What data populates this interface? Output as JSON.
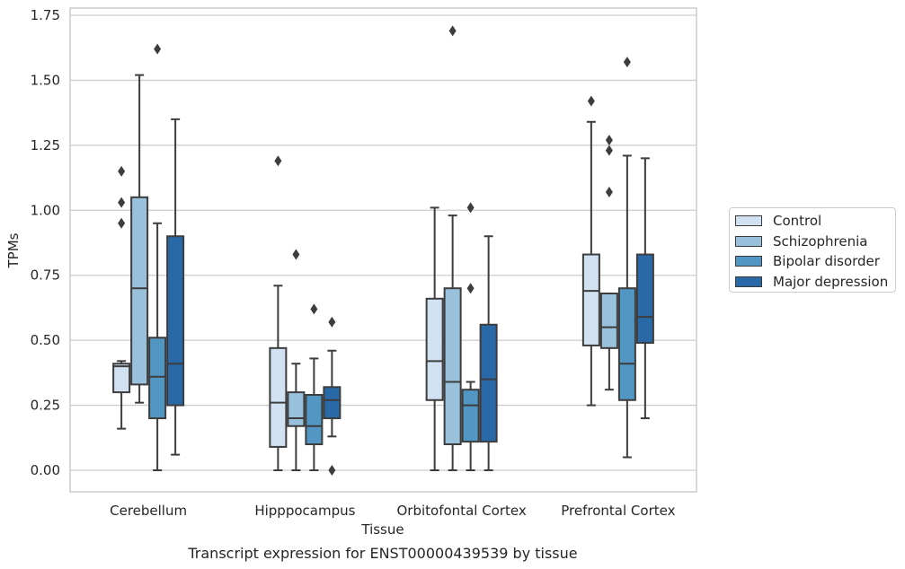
{
  "chart_data": {
    "type": "box",
    "title": "",
    "caption": "Transcript expression for ENST00000439539 by tissue",
    "xlabel": "Tissue",
    "ylabel": "TPMs",
    "ylim": [
      -0.08,
      1.76
    ],
    "yticks": [
      "0.00",
      "0.25",
      "0.50",
      "0.75",
      "1.00",
      "1.25",
      "1.50",
      "1.75"
    ],
    "ytick_values": [
      0,
      0.25,
      0.5,
      0.75,
      1.0,
      1.25,
      1.5,
      1.75
    ],
    "grid": "horizontal",
    "legend_position": "outside-right",
    "categories": [
      "Cerebellum",
      "Hipppocampus",
      "Orbitofontal Cortex",
      "Prefrontal Cortex"
    ],
    "series": [
      {
        "name": "Control",
        "color": "#d1e1f1",
        "boxes": [
          {
            "whisker_low": 0.16,
            "q1": 0.3,
            "median": 0.4,
            "q3": 0.41,
            "whisker_high": 0.42,
            "outliers": [
              0.95,
              1.03,
              1.15
            ]
          },
          {
            "whisker_low": 0.0,
            "q1": 0.09,
            "median": 0.26,
            "q3": 0.47,
            "whisker_high": 0.71,
            "outliers": [
              1.19
            ]
          },
          {
            "whisker_low": 0.0,
            "q1": 0.27,
            "median": 0.42,
            "q3": 0.66,
            "whisker_high": 1.01,
            "outliers": []
          },
          {
            "whisker_low": 0.25,
            "q1": 0.48,
            "median": 0.69,
            "q3": 0.83,
            "whisker_high": 1.34,
            "outliers": [
              1.42
            ]
          }
        ]
      },
      {
        "name": "Schizophrenia",
        "color": "#9ac1db",
        "boxes": [
          {
            "whisker_low": 0.26,
            "q1": 0.33,
            "median": 0.7,
            "q3": 1.05,
            "whisker_high": 1.52,
            "outliers": []
          },
          {
            "whisker_low": 0.0,
            "q1": 0.17,
            "median": 0.2,
            "q3": 0.3,
            "whisker_high": 0.41,
            "outliers": [
              0.83
            ]
          },
          {
            "whisker_low": 0.0,
            "q1": 0.1,
            "median": 0.34,
            "q3": 0.7,
            "whisker_high": 0.98,
            "outliers": [
              1.69
            ]
          },
          {
            "whisker_low": 0.31,
            "q1": 0.47,
            "median": 0.55,
            "q3": 0.68,
            "whisker_high": 0.68,
            "outliers": [
              1.07,
              1.23,
              1.27
            ]
          }
        ]
      },
      {
        "name": "Bipolar disorder",
        "color": "#5297c4",
        "boxes": [
          {
            "whisker_low": 0.0,
            "q1": 0.2,
            "median": 0.36,
            "q3": 0.51,
            "whisker_high": 0.95,
            "outliers": [
              1.62
            ]
          },
          {
            "whisker_low": 0.0,
            "q1": 0.1,
            "median": 0.17,
            "q3": 0.29,
            "whisker_high": 0.43,
            "outliers": [
              0.62
            ]
          },
          {
            "whisker_low": 0.0,
            "q1": 0.11,
            "median": 0.25,
            "q3": 0.31,
            "whisker_high": 0.34,
            "outliers": [
              0.7,
              1.01
            ]
          },
          {
            "whisker_low": 0.05,
            "q1": 0.27,
            "median": 0.41,
            "q3": 0.7,
            "whisker_high": 1.21,
            "outliers": [
              1.57
            ]
          }
        ]
      },
      {
        "name": "Major depression",
        "color": "#2a69a8",
        "boxes": [
          {
            "whisker_low": 0.06,
            "q1": 0.25,
            "median": 0.41,
            "q3": 0.9,
            "whisker_high": 1.35,
            "outliers": []
          },
          {
            "whisker_low": 0.13,
            "q1": 0.2,
            "median": 0.27,
            "q3": 0.32,
            "whisker_high": 0.46,
            "outliers": [
              0.0,
              0.57
            ]
          },
          {
            "whisker_low": 0.0,
            "q1": 0.11,
            "median": 0.35,
            "q3": 0.56,
            "whisker_high": 0.9,
            "outliers": []
          },
          {
            "whisker_low": 0.2,
            "q1": 0.49,
            "median": 0.59,
            "q3": 0.83,
            "whisker_high": 1.2,
            "outliers": []
          }
        ]
      }
    ]
  }
}
